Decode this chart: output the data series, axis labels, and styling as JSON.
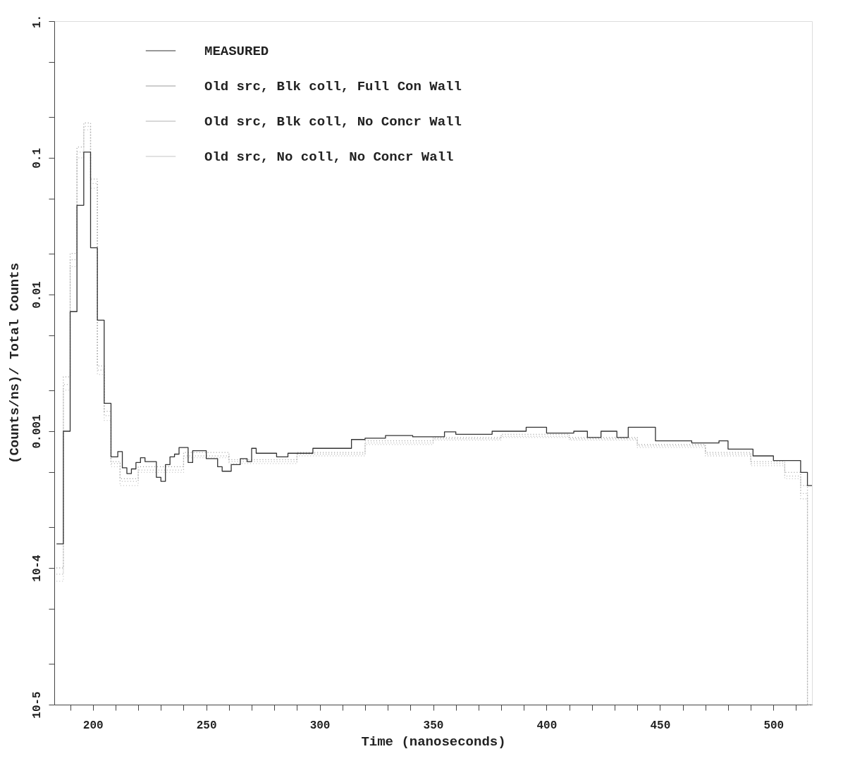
{
  "chart_data": {
    "type": "step",
    "xlabel": "Time (nanoseconds)",
    "ylabel": "(Counts/ns)/ Total Counts",
    "xlim": [
      183,
      517
    ],
    "ylim": [
      1e-05,
      1
    ],
    "log": "y",
    "grid": false,
    "legend": "top",
    "marker": "none",
    "xticks": [
      {
        "value": 190,
        "label": null
      },
      200,
      {
        "value": 210,
        "label": null
      },
      {
        "value": 220,
        "label": null
      },
      {
        "value": 230,
        "label": null
      },
      {
        "value": 240,
        "label": null
      },
      250,
      {
        "value": 260,
        "label": null
      },
      {
        "value": 270,
        "label": null
      },
      {
        "value": 280,
        "label": null
      },
      {
        "value": 290,
        "label": null
      },
      300,
      {
        "value": 310,
        "label": null
      },
      {
        "value": 320,
        "label": null
      },
      {
        "value": 330,
        "label": null
      },
      {
        "value": 340,
        "label": null
      },
      350,
      {
        "value": 360,
        "label": null
      },
      {
        "value": 370,
        "label": null
      },
      {
        "value": 380,
        "label": null
      },
      {
        "value": 390,
        "label": null
      },
      400,
      {
        "value": 410,
        "label": null
      },
      {
        "value": 420,
        "label": null
      },
      {
        "value": 430,
        "label": null
      },
      {
        "value": 440,
        "label": null
      },
      450,
      {
        "value": 460,
        "label": null
      },
      {
        "value": 470,
        "label": null
      },
      {
        "value": 480,
        "label": null
      },
      {
        "value": 490,
        "label": null
      },
      500,
      {
        "value": 510,
        "label": null
      }
    ],
    "yticks": [
      {
        "value": 1e-05,
        "label": "10-5"
      },
      {
        "value": 2e-05,
        "label": null
      },
      {
        "value": 5e-05,
        "label": null
      },
      {
        "value": 0.0001,
        "label": "10-4"
      },
      {
        "value": 0.0002,
        "label": null
      },
      {
        "value": 0.0005,
        "label": null
      },
      0.001,
      {
        "value": 0.002,
        "label": null
      },
      {
        "value": 0.005,
        "label": null
      },
      0.01,
      {
        "value": 0.02,
        "label": null
      },
      {
        "value": 0.05,
        "label": null
      },
      0.1,
      {
        "value": 0.2,
        "label": null
      },
      {
        "value": 0.5,
        "label": null
      },
      {
        "value": 1,
        "label": "1."
      }
    ],
    "series": [
      {
        "name": "MEASURED",
        "color": "#333333",
        "line_style": "solid",
        "x": [
          184,
          187,
          190,
          193,
          196,
          199,
          202,
          205,
          208,
          211,
          213,
          215,
          217,
          219,
          221,
          223,
          228,
          230,
          232,
          234,
          236,
          238,
          242,
          244,
          250,
          255,
          257,
          261,
          265,
          268,
          270,
          272,
          281,
          286,
          297,
          306,
          314,
          320,
          329,
          341,
          355,
          360,
          376,
          391,
          400,
          412,
          418,
          424,
          431,
          436,
          448,
          464,
          476,
          480,
          491,
          500,
          512,
          515,
          517
        ],
        "values": [
          0.00015,
          0.001,
          0.0075,
          0.045,
          0.11,
          0.022,
          0.0065,
          0.0016,
          0.00065,
          0.00071,
          0.00054,
          0.00049,
          0.00053,
          0.00059,
          0.00064,
          0.0006,
          0.00046,
          0.00043,
          0.00057,
          0.00065,
          0.00068,
          0.00076,
          0.00059,
          0.00072,
          0.00063,
          0.00055,
          0.00051,
          0.00057,
          0.00063,
          0.0006,
          0.00075,
          0.00069,
          0.00065,
          0.00069,
          0.00075,
          0.00075,
          0.00087,
          0.00089,
          0.00093,
          0.00091,
          0.00099,
          0.00095,
          0.001,
          0.00107,
          0.00097,
          0.001,
          0.0009,
          0.001,
          0.0009,
          0.00107,
          0.00085,
          0.00082,
          0.00085,
          0.00074,
          0.00066,
          0.00061,
          0.0005,
          0.0004,
          0.0004
        ]
      },
      {
        "name": "Old src, Blk coll, Full Con Wall",
        "color": "#9a9a9a",
        "line_style": "dotted",
        "x": [
          184,
          187,
          190,
          193,
          196,
          199,
          202,
          205,
          208,
          212,
          220,
          240,
          260,
          290,
          320,
          350,
          380,
          410,
          440,
          470,
          490,
          505,
          512,
          515,
          517
        ],
        "values": [
          0.0001,
          0.0025,
          0.02,
          0.12,
          0.18,
          0.07,
          0.003,
          0.0014,
          0.0006,
          0.00045,
          0.00055,
          0.0007,
          0.00062,
          0.0007,
          0.00085,
          0.0009,
          0.00095,
          0.0009,
          0.0008,
          0.0007,
          0.0006,
          0.0005,
          0.0004,
          1e-05,
          1e-05
        ]
      },
      {
        "name": "Old src, Blk coll, No Concr Wall",
        "color": "#b0b0b0",
        "line_style": "dotted",
        "x": [
          184,
          187,
          190,
          193,
          196,
          199,
          202,
          205,
          208,
          212,
          220,
          240,
          260,
          290,
          320,
          350,
          380,
          410,
          440,
          470,
          490,
          505,
          512,
          515,
          517
        ],
        "values": [
          9e-05,
          0.0022,
          0.018,
          0.11,
          0.17,
          0.065,
          0.0028,
          0.0013,
          0.00058,
          0.00043,
          0.00052,
          0.00066,
          0.0006,
          0.00068,
          0.00082,
          0.00088,
          0.00092,
          0.00088,
          0.00078,
          0.00068,
          0.00058,
          0.00047,
          0.00035,
          1e-05,
          1e-05
        ]
      },
      {
        "name": "Old src, No  coll, No Concr Wall",
        "color": "#c4c4c4",
        "line_style": "dotted",
        "x": [
          184,
          187,
          190,
          193,
          196,
          199,
          202,
          205,
          208,
          212,
          220,
          240,
          260,
          290,
          320,
          350,
          380,
          410,
          440,
          470,
          490,
          505,
          512,
          515,
          517
        ],
        "values": [
          8e-05,
          0.002,
          0.016,
          0.1,
          0.16,
          0.06,
          0.0026,
          0.0012,
          0.00055,
          0.0004,
          0.0005,
          0.00064,
          0.00058,
          0.00066,
          0.0008,
          0.00086,
          0.0009,
          0.00086,
          0.00076,
          0.00066,
          0.00056,
          0.00045,
          0.00032,
          1e-05,
          1e-05
        ]
      }
    ]
  }
}
